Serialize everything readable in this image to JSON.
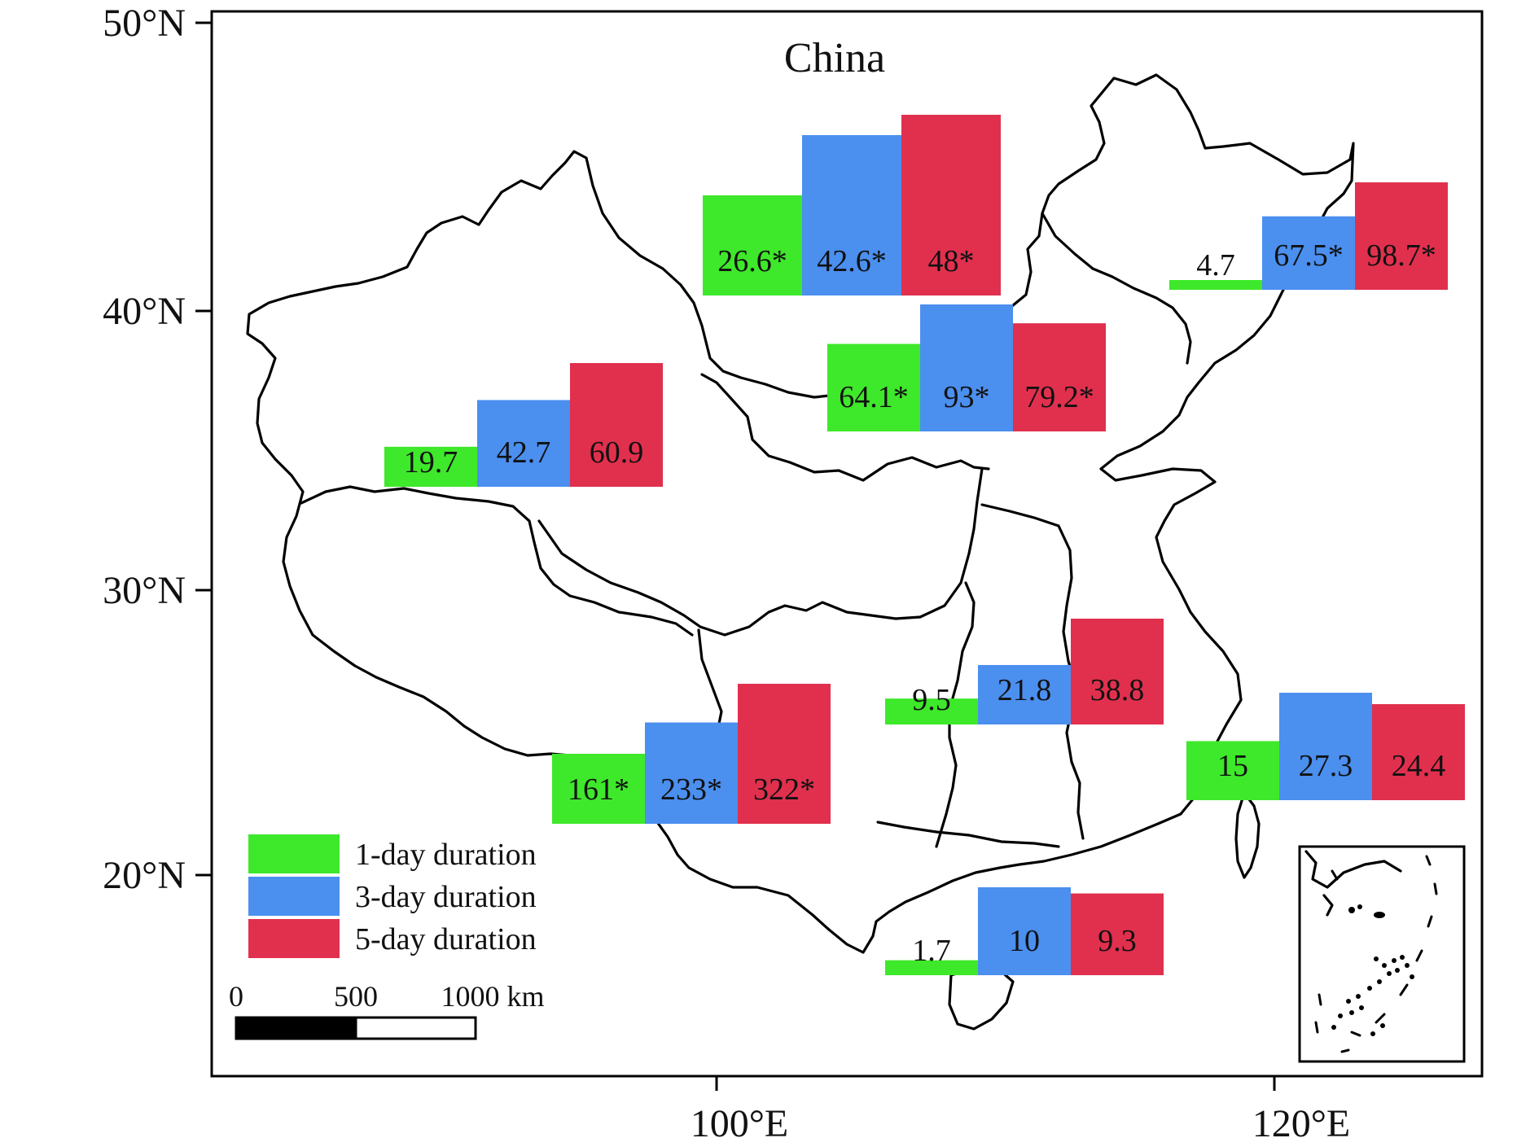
{
  "map": {
    "title": "China",
    "lat_ticks": [
      "50°N",
      "40°N",
      "30°N",
      "20°N"
    ],
    "lon_ticks": [
      "100°E",
      "120°E"
    ],
    "series_colors": [
      "#3ee82a",
      "#4b8fef",
      "#e0304e"
    ],
    "legend": [
      "1-day duration",
      "3-day duration",
      "5-day duration"
    ],
    "scale": {
      "labels": [
        "0",
        "500",
        "1000 km"
      ]
    },
    "groups": [
      {
        "id": "north-china",
        "values": [
          26.6,
          42.6,
          48
        ],
        "labels": [
          "26.6*",
          "42.6*",
          "48*"
        ]
      },
      {
        "id": "northeast",
        "values": [
          4.7,
          67.5,
          98.7
        ],
        "labels": [
          "4.7",
          "67.5*",
          "98.7*"
        ]
      },
      {
        "id": "northwest",
        "values": [
          19.7,
          42.7,
          60.9
        ],
        "labels": [
          "19.7",
          "42.7",
          "60.9"
        ]
      },
      {
        "id": "north-central",
        "values": [
          64.1,
          93,
          79.2
        ],
        "labels": [
          "64.1*",
          "93*",
          "79.2*"
        ]
      },
      {
        "id": "central",
        "values": [
          9.5,
          21.8,
          38.8
        ],
        "labels": [
          "9.5",
          "21.8",
          "38.8"
        ]
      },
      {
        "id": "east",
        "values": [
          15,
          27.3,
          24.4
        ],
        "labels": [
          "15",
          "27.3",
          "24.4"
        ]
      },
      {
        "id": "southwest",
        "values": [
          161,
          233,
          322
        ],
        "labels": [
          "161*",
          "233*",
          "322*"
        ]
      },
      {
        "id": "south",
        "values": [
          1.7,
          10,
          9.3
        ],
        "labels": [
          "1.7",
          "10",
          "9.3"
        ]
      }
    ]
  }
}
